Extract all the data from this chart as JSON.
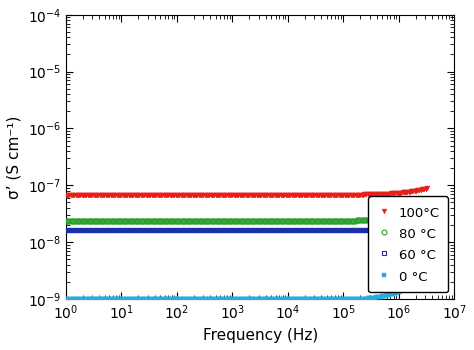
{
  "xlabel": "Frequency (Hz)",
  "ylabel": "σ’ (S cm⁻¹)",
  "xlim_log": [
    0,
    7
  ],
  "ylim_log": [
    -9,
    -4
  ],
  "series": [
    {
      "label": "100°C",
      "color": "#e8201a",
      "marker": "v",
      "markersize": 3.5,
      "markeredgewidth": 0.3,
      "fillstyle": "full",
      "sigma_dc_log": -7.17,
      "A_log": -14.5,
      "n": 1.05
    },
    {
      "label": "80 °C",
      "color": "#2ca02c",
      "marker": "o",
      "markersize": 3.5,
      "markeredgewidth": 0.8,
      "fillstyle": "none",
      "sigma_dc_log": -7.62,
      "A_log": -15.8,
      "n": 1.08
    },
    {
      "label": "60 °C",
      "color": "#1a2faa",
      "marker": "s",
      "markersize": 3.0,
      "markeredgewidth": 0.8,
      "fillstyle": "none",
      "sigma_dc_log": -7.78,
      "A_log": -16.2,
      "n": 1.1
    },
    {
      "label": "0 °C",
      "color": "#2aaae0",
      "marker": "s",
      "markersize": 3.5,
      "markeredgewidth": 0.3,
      "fillstyle": "full",
      "sigma_dc_log": -9.02,
      "A_log": -17.5,
      "n": 1.35
    }
  ],
  "n_points": 300,
  "background_color": "#ffffff"
}
